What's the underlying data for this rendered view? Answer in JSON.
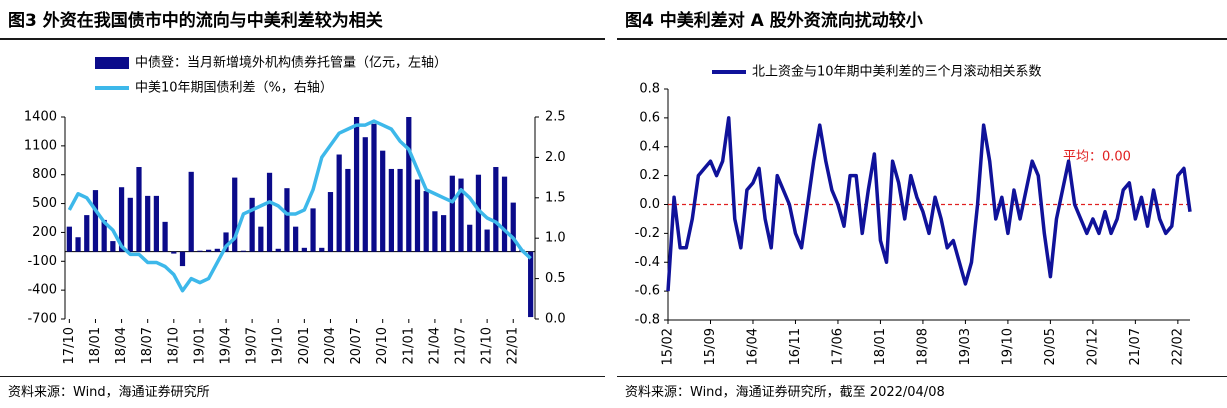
{
  "chart_data": [
    {
      "type": "bar",
      "title": "图3  外资在我国债市中的流向与中美利差较为相关",
      "note": "资料来源：Wind，海通证券研究所",
      "categories": [
        "17/10",
        null,
        null,
        "18/01",
        null,
        null,
        "18/04",
        null,
        null,
        "18/07",
        null,
        null,
        "18/10",
        null,
        null,
        "19/01",
        null,
        null,
        "19/04",
        null,
        null,
        "19/07",
        null,
        null,
        "19/10",
        null,
        null,
        "20/01",
        null,
        null,
        "20/04",
        null,
        null,
        "20/07",
        null,
        null,
        "20/10",
        null,
        null,
        "21/01",
        null,
        null,
        "21/04",
        null,
        null,
        "21/07",
        null,
        null,
        "21/10",
        null,
        null,
        "22/01",
        null,
        null
      ],
      "series": [
        {
          "name": "中债登：当月新增境外机构债券托管量（亿元，左轴）",
          "type": "bar",
          "color": "#0b0b8a",
          "values": [
            260,
            150,
            380,
            640,
            330,
            110,
            670,
            560,
            880,
            580,
            580,
            310,
            -20,
            -150,
            830,
            10,
            20,
            30,
            200,
            770,
            10,
            560,
            260,
            820,
            30,
            660,
            260,
            40,
            450,
            40,
            620,
            1010,
            860,
            1400,
            1190,
            1330,
            1050,
            860,
            860,
            1400,
            750,
            630,
            420,
            380,
            790,
            760,
            280,
            800,
            230,
            880,
            780,
            510,
            20,
            -680
          ]
        },
        {
          "name": "中美10年期国债利差（%，右轴）",
          "type": "line",
          "axis": "y2",
          "color": "#3db8ea",
          "values": [
            1.35,
            1.55,
            1.5,
            1.35,
            1.2,
            1.1,
            0.9,
            0.8,
            0.8,
            0.7,
            0.7,
            0.65,
            0.55,
            0.35,
            0.5,
            0.45,
            0.5,
            0.7,
            0.9,
            1.0,
            1.3,
            1.35,
            1.4,
            1.45,
            1.4,
            1.3,
            1.3,
            1.35,
            1.6,
            2.0,
            2.15,
            2.3,
            2.35,
            2.4,
            2.4,
            2.45,
            2.4,
            2.35,
            2.2,
            2.1,
            1.85,
            1.6,
            1.55,
            1.5,
            1.45,
            1.6,
            1.5,
            1.35,
            1.25,
            1.2,
            1.1,
            1.0,
            0.85,
            0.75
          ]
        }
      ],
      "ylim": [
        -700,
        1400
      ],
      "yticks": [
        -700,
        -400,
        -100,
        200,
        500,
        800,
        1100,
        1400
      ],
      "y2lim": [
        0,
        2.5
      ],
      "y2ticks": [
        {
          "value": 0,
          "label": "0.0"
        },
        0.5,
        {
          "value": 1,
          "label": "1.0"
        },
        1.5,
        {
          "value": 2,
          "label": "2.0"
        },
        2.5
      ]
    },
    {
      "type": "line",
      "title": "图4  中美利差对 A 股外资流向扰动较小",
      "note": "资料来源：Wind，海通证券研究所，截至 2022/04/08",
      "categories": [
        "15/02",
        null,
        null,
        null,
        null,
        null,
        null,
        "15/09",
        null,
        null,
        null,
        null,
        null,
        null,
        "16/04",
        null,
        null,
        null,
        null,
        null,
        null,
        "16/11",
        null,
        null,
        null,
        null,
        null,
        null,
        "17/06",
        null,
        null,
        null,
        null,
        null,
        null,
        "18/01",
        null,
        null,
        null,
        null,
        null,
        null,
        "18/08",
        null,
        null,
        null,
        null,
        null,
        null,
        "19/03",
        null,
        null,
        null,
        null,
        null,
        null,
        "19/10",
        null,
        null,
        null,
        null,
        null,
        null,
        "20/05",
        null,
        null,
        null,
        null,
        null,
        null,
        "20/12",
        null,
        null,
        null,
        null,
        null,
        null,
        "21/07",
        null,
        null,
        null,
        null,
        null,
        null,
        "22/02",
        null,
        null
      ],
      "series": [
        {
          "name": "北上资金与10年期中美利差的三个月滚动相关系数",
          "color": "#10129a",
          "values": [
            -0.6,
            0.05,
            -0.3,
            -0.3,
            -0.1,
            0.2,
            0.25,
            0.3,
            0.2,
            0.3,
            0.6,
            -0.1,
            -0.3,
            0.1,
            0.15,
            0.25,
            -0.1,
            -0.3,
            0.2,
            0.1,
            0.0,
            -0.2,
            -0.3,
            0.0,
            0.3,
            0.55,
            0.3,
            0.1,
            0.0,
            -0.15,
            0.2,
            0.2,
            -0.2,
            0.1,
            0.35,
            -0.25,
            -0.4,
            0.3,
            0.15,
            -0.1,
            0.2,
            0.05,
            -0.05,
            -0.2,
            0.05,
            -0.1,
            -0.3,
            -0.25,
            -0.4,
            -0.55,
            -0.4,
            0.0,
            0.55,
            0.3,
            -0.1,
            0.05,
            -0.2,
            0.1,
            -0.1,
            0.1,
            0.3,
            0.2,
            -0.2,
            -0.5,
            -0.1,
            0.1,
            0.3,
            0.0,
            -0.1,
            -0.2,
            -0.1,
            -0.2,
            -0.05,
            -0.2,
            -0.1,
            0.1,
            0.15,
            -0.1,
            0.05,
            -0.15,
            0.1,
            -0.1,
            -0.2,
            -0.15,
            0.2,
            0.25,
            -0.05
          ]
        }
      ],
      "mean": {
        "value": 0,
        "label": "平均：0.00",
        "color": "#e02020"
      },
      "ylim": [
        -0.8,
        0.8
      ],
      "yticks": [
        -0.8,
        -0.6,
        -0.4,
        -0.2,
        {
          "value": 0,
          "label": "0.0"
        },
        0.2,
        0.4,
        0.6,
        0.8
      ]
    }
  ]
}
